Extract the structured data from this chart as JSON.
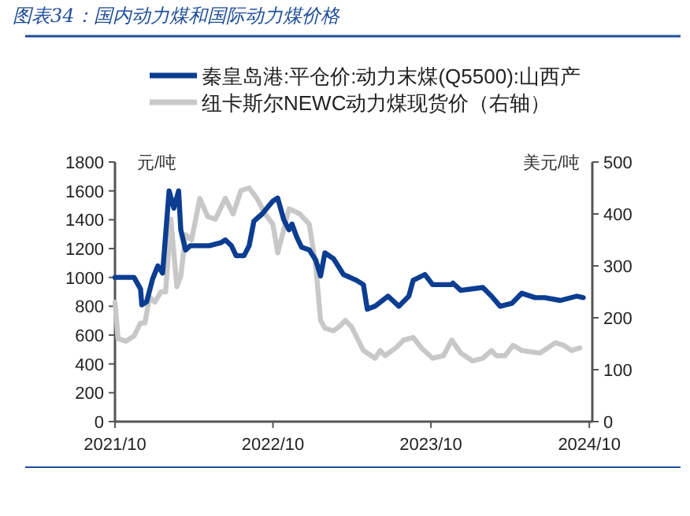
{
  "chart_data": {
    "type": "line",
    "title": "图表34：国内动力煤和国际动力煤价格",
    "ylabel": "元/吨",
    "y2label": "美元/吨",
    "legend": "top",
    "grid": false,
    "line_style": "solid",
    "marker": "none",
    "xlim": [
      "2021-10-01",
      "2024-10-08"
    ],
    "xticks": [
      {
        "value": "2021-10",
        "label": "2021/10"
      },
      {
        "value": "2022-10",
        "label": "2022/10"
      },
      {
        "value": "2023-10",
        "label": "2023/10"
      },
      {
        "value": "2024-10",
        "label": "2024/10"
      }
    ],
    "ylim": [
      0,
      1800
    ],
    "yticks": [
      0,
      200,
      400,
      600,
      800,
      1000,
      1200,
      1400,
      1600,
      1800
    ],
    "y2lim": [
      0,
      500
    ],
    "y2ticks": [
      0,
      100,
      200,
      300,
      400,
      500
    ],
    "series": [
      {
        "name": "秦皇岛港:平仓价:动力末煤(Q5500):山西产",
        "color": "#0b3d91",
        "x": [
          "2021-10-01",
          "2021-11-14",
          "2021-11-29",
          "2021-12-02",
          "2021-12-13",
          "2021-12-27",
          "2022-01-08",
          "2022-01-19",
          "2022-02-03",
          "2022-02-14",
          "2022-02-25",
          "2022-03-02",
          "2022-03-13",
          "2022-03-24",
          "2022-04-08",
          "2022-05-07",
          "2022-06-02",
          "2022-06-13",
          "2022-06-27",
          "2022-07-08",
          "2022-07-26",
          "2022-08-07",
          "2022-08-18",
          "2022-09-06",
          "2022-10-01",
          "2022-10-12",
          "2022-10-26",
          "2022-11-07",
          "2022-11-14",
          "2022-11-25",
          "2022-12-06",
          "2022-12-24",
          "2023-01-08",
          "2023-01-19",
          "2023-01-29",
          "2023-02-18",
          "2023-03-13",
          "2023-04-12",
          "2023-04-28",
          "2023-05-07",
          "2023-05-25",
          "2023-06-24",
          "2023-07-19",
          "2023-08-11",
          "2023-08-21",
          "2023-09-17",
          "2023-10-05",
          "2023-11-18",
          "2023-11-21",
          "2023-12-09",
          "2024-01-29",
          "2024-02-18",
          "2024-03-09",
          "2024-04-05",
          "2024-04-28",
          "2024-05-29",
          "2024-06-20",
          "2024-07-26",
          "2024-09-02",
          "2024-09-17"
        ],
        "values": [
          1000,
          1000,
          920,
          810,
          830,
          990,
          1080,
          1030,
          1600,
          1480,
          1600,
          1330,
          1190,
          1220,
          1220,
          1220,
          1240,
          1260,
          1220,
          1150,
          1150,
          1220,
          1390,
          1440,
          1530,
          1550,
          1400,
          1330,
          1370,
          1280,
          1210,
          1190,
          1120,
          1010,
          1170,
          1130,
          1020,
          980,
          950,
          780,
          800,
          870,
          800,
          870,
          980,
          1020,
          950,
          950,
          960,
          910,
          930,
          870,
          800,
          820,
          890,
          860,
          860,
          840,
          870,
          860
        ]
      },
      {
        "name": "纽卡斯尔NEWC动力煤现货价（右轴）",
        "color": "#c8c8c8",
        "axis": "y2",
        "x": [
          "2021-10-01",
          "2021-10-08",
          "2021-10-26",
          "2021-11-14",
          "2021-11-29",
          "2021-12-09",
          "2021-12-20",
          "2022-01-01",
          "2022-01-15",
          "2022-01-26",
          "2022-02-07",
          "2022-02-21",
          "2022-03-02",
          "2022-03-13",
          "2022-03-27",
          "2022-04-15",
          "2022-05-03",
          "2022-05-21",
          "2022-06-13",
          "2022-07-01",
          "2022-07-19",
          "2022-08-07",
          "2022-08-25",
          "2022-09-13",
          "2022-10-01",
          "2022-10-12",
          "2022-10-26",
          "2022-11-07",
          "2022-12-02",
          "2022-12-24",
          "2023-01-08",
          "2023-01-19",
          "2023-01-29",
          "2023-02-18",
          "2023-03-06",
          "2023-03-17",
          "2023-04-01",
          "2023-04-28",
          "2023-05-25",
          "2023-06-06",
          "2023-06-17",
          "2023-07-12",
          "2023-07-30",
          "2023-08-21",
          "2023-09-09",
          "2023-10-05",
          "2023-10-30",
          "2023-11-18",
          "2023-12-09",
          "2024-01-05",
          "2024-01-29",
          "2024-02-18",
          "2024-02-29",
          "2024-03-20",
          "2024-04-08",
          "2024-04-28",
          "2024-06-09",
          "2024-07-15",
          "2024-08-03",
          "2024-08-21",
          "2024-09-09"
        ],
        "values": [
          230,
          160,
          155,
          165,
          190,
          190,
          240,
          230,
          250,
          250,
          390,
          260,
          280,
          360,
          350,
          430,
          395,
          390,
          430,
          400,
          445,
          450,
          430,
          400,
          380,
          325,
          370,
          410,
          400,
          380,
          300,
          195,
          180,
          175,
          185,
          195,
          182,
          137,
          122,
          137,
          127,
          142,
          157,
          162,
          142,
          122,
          127,
          157,
          132,
          117,
          122,
          137,
          127,
          127,
          147,
          137,
          132,
          152,
          147,
          137,
          142
        ]
      }
    ]
  }
}
